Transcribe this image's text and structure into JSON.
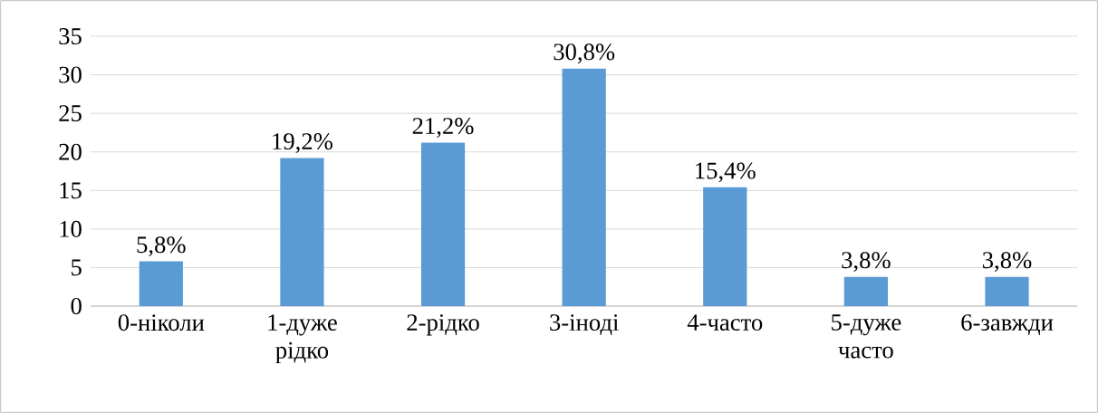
{
  "chart_data": {
    "type": "bar",
    "categories": [
      "0-ніколи",
      "1-дуже рідко",
      "2-рідко",
      "3-іноді",
      "4-часто",
      "5-дуже часто",
      "6-завжди"
    ],
    "values": [
      5.8,
      19.2,
      21.2,
      30.8,
      15.4,
      3.8,
      3.8
    ],
    "value_labels": [
      "5,8%",
      "19,2%",
      "21,2%",
      "30,8%",
      "15,4%",
      "3,8%",
      "3,8%"
    ],
    "color": "#5b9bd5",
    "ylim": [
      0,
      35
    ],
    "yticks": [
      0,
      5,
      10,
      15,
      20,
      25,
      30,
      35
    ],
    "grid": "y"
  }
}
